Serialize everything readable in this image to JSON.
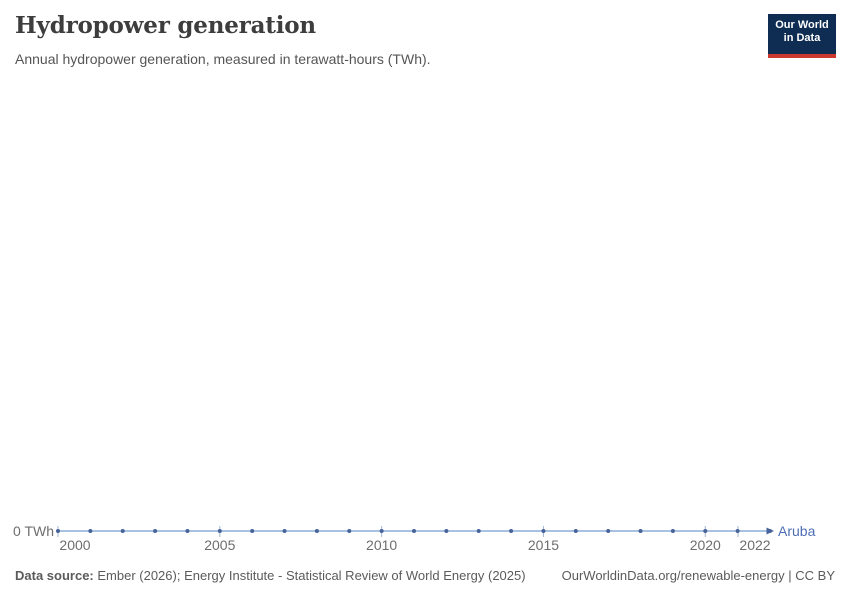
{
  "header": {
    "title": "Hydropower generation",
    "subtitle": "Annual hydropower generation, measured in terawatt-hours (TWh).",
    "logo": {
      "line1": "Our World",
      "line2": "in Data"
    }
  },
  "chart_data": {
    "type": "line",
    "title": "Hydropower generation",
    "xlabel": "",
    "ylabel": "TWh",
    "y_axis_label": "0 TWh",
    "xlim": [
      2000,
      2022
    ],
    "ylim": [
      0,
      0
    ],
    "grid": false,
    "legend_position": "end-of-line",
    "x_ticks": [
      2000,
      2005,
      2010,
      2015,
      2020,
      2022
    ],
    "series": [
      {
        "name": "Aruba",
        "x": [
          2000,
          2001,
          2002,
          2003,
          2004,
          2005,
          2006,
          2007,
          2008,
          2009,
          2010,
          2011,
          2012,
          2013,
          2014,
          2015,
          2016,
          2017,
          2018,
          2019,
          2020,
          2021,
          2022
        ],
        "values": [
          0,
          0,
          0,
          0,
          0,
          0,
          0,
          0,
          0,
          0,
          0,
          0,
          0,
          0,
          0,
          0,
          0,
          0,
          0,
          0,
          0,
          0,
          0
        ]
      }
    ],
    "colors": {
      "line": "#a8c3e2",
      "marker": "#47639a",
      "entity_label": "#4e6eb5",
      "tick_mark": "#a3b6cf",
      "axis_text": "#6e6e6e"
    }
  },
  "footer": {
    "source_label": "Data source:",
    "source_text": " Ember (2026); Energy Institute - Statistical Review of World Energy (2025)",
    "link_text": "OurWorldinData.org/renewable-energy | CC BY"
  },
  "logo_colors": {
    "background": "#0f2d52",
    "bar": "#cc392e"
  }
}
